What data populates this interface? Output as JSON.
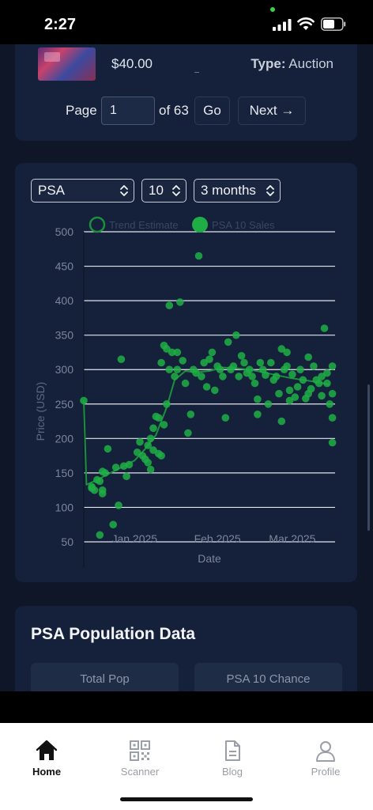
{
  "status": {
    "time": "2:27"
  },
  "listing": {
    "price": "$40.00",
    "type_label": "Type:",
    "type_value": "Auction"
  },
  "pager": {
    "page_label": "Page",
    "page_value": "1",
    "of_label": "of 63",
    "go_label": "Go",
    "next_label": "Next →"
  },
  "filters": {
    "grader": "PSA",
    "grade": "10",
    "range": "3 months"
  },
  "chart_data": {
    "type": "scatter",
    "xlabel": "Date",
    "ylabel": "Price (USD)",
    "ylim": [
      50,
      500
    ],
    "xlim": [
      "2024-12-13",
      "2025-03-17"
    ],
    "yticks": [
      50,
      100,
      150,
      200,
      250,
      300,
      350,
      400,
      450,
      500
    ],
    "xticks": [
      {
        "date": "2025-01-01",
        "label": "Jan 2025"
      },
      {
        "date": "2025-02-01",
        "label": "Feb 2025"
      },
      {
        "date": "2025-03-01",
        "label": "Mar 2025"
      }
    ],
    "grid": "horizontal",
    "legend_position": "top",
    "colors": {
      "sales": "#1fae45",
      "trend": "#1c8f3c",
      "grid": "#e3e6ec",
      "text": "#7b859a"
    },
    "series": [
      {
        "name": "Trend Estimate",
        "style": "line",
        "points": [
          [
            "2024-12-13",
            255
          ],
          [
            "2024-12-14",
            133
          ],
          [
            "2024-12-18",
            140
          ],
          [
            "2024-12-22",
            148
          ],
          [
            "2024-12-27",
            158
          ],
          [
            "2025-01-01",
            168
          ],
          [
            "2025-01-05",
            185
          ],
          [
            "2025-01-09",
            205
          ],
          [
            "2025-01-13",
            245
          ],
          [
            "2025-01-16",
            285
          ],
          [
            "2025-01-20",
            298
          ],
          [
            "2025-01-24",
            296
          ],
          [
            "2025-01-29",
            298
          ],
          [
            "2025-02-03",
            303
          ],
          [
            "2025-02-08",
            302
          ],
          [
            "2025-02-13",
            300
          ],
          [
            "2025-02-18",
            296
          ],
          [
            "2025-02-23",
            292
          ],
          [
            "2025-02-28",
            288
          ],
          [
            "2025-03-05",
            285
          ],
          [
            "2025-03-10",
            282
          ],
          [
            "2025-03-15",
            278
          ]
        ]
      },
      {
        "name": "PSA 10 Sales",
        "style": "scatter",
        "points": [
          [
            "2024-12-13",
            255
          ],
          [
            "2024-12-16",
            128
          ],
          [
            "2024-12-16",
            130
          ],
          [
            "2024-12-17",
            125
          ],
          [
            "2024-12-18",
            140
          ],
          [
            "2024-12-19",
            138
          ],
          [
            "2024-12-20",
            152
          ],
          [
            "2024-12-20",
            125
          ],
          [
            "2024-12-20",
            120
          ],
          [
            "2024-12-21",
            150
          ],
          [
            "2024-12-22",
            185
          ],
          [
            "2024-12-19",
            60
          ],
          [
            "2024-12-24",
            75
          ],
          [
            "2024-12-26",
            103
          ],
          [
            "2024-12-25",
            158
          ],
          [
            "2024-12-27",
            315
          ],
          [
            "2024-12-28",
            160
          ],
          [
            "2024-12-29",
            145
          ],
          [
            "2024-12-30",
            162
          ],
          [
            "2025-01-02",
            180
          ],
          [
            "2025-01-03",
            195
          ],
          [
            "2025-01-04",
            175
          ],
          [
            "2025-01-05",
            170
          ],
          [
            "2025-01-06",
            165
          ],
          [
            "2025-01-06",
            190
          ],
          [
            "2025-01-07",
            155
          ],
          [
            "2025-01-07",
            200
          ],
          [
            "2025-01-08",
            215
          ],
          [
            "2025-01-08",
            183
          ],
          [
            "2025-01-09",
            232
          ],
          [
            "2025-01-10",
            178
          ],
          [
            "2025-01-10",
            230
          ],
          [
            "2025-01-11",
            175
          ],
          [
            "2025-01-11",
            310
          ],
          [
            "2025-01-12",
            220
          ],
          [
            "2025-01-12",
            335
          ],
          [
            "2025-01-13",
            250
          ],
          [
            "2025-01-13",
            330
          ],
          [
            "2025-01-14",
            393
          ],
          [
            "2025-01-14",
            300
          ],
          [
            "2025-01-15",
            325
          ],
          [
            "2025-01-16",
            290
          ],
          [
            "2025-01-17",
            300
          ],
          [
            "2025-01-17",
            325
          ],
          [
            "2025-01-18",
            398
          ],
          [
            "2025-01-19",
            313
          ],
          [
            "2025-01-20",
            280
          ],
          [
            "2025-01-21",
            208
          ],
          [
            "2025-01-22",
            235
          ],
          [
            "2025-01-23",
            300
          ],
          [
            "2025-01-24",
            295
          ],
          [
            "2025-01-25",
            465
          ],
          [
            "2025-01-26",
            290
          ],
          [
            "2025-01-27",
            310
          ],
          [
            "2025-01-28",
            275
          ],
          [
            "2025-01-29",
            315
          ],
          [
            "2025-01-30",
            325
          ],
          [
            "2025-01-31",
            270
          ],
          [
            "2025-02-01",
            305
          ],
          [
            "2025-02-02",
            300
          ],
          [
            "2025-02-03",
            290
          ],
          [
            "2025-02-04",
            230
          ],
          [
            "2025-02-05",
            340
          ],
          [
            "2025-02-06",
            300
          ],
          [
            "2025-02-07",
            305
          ],
          [
            "2025-02-08",
            350
          ],
          [
            "2025-02-09",
            290
          ],
          [
            "2025-02-10",
            320
          ],
          [
            "2025-02-11",
            310
          ],
          [
            "2025-02-12",
            295
          ],
          [
            "2025-02-13",
            300
          ],
          [
            "2025-02-14",
            290
          ],
          [
            "2025-02-15",
            280
          ],
          [
            "2025-02-16",
            257
          ],
          [
            "2025-02-16",
            235
          ],
          [
            "2025-02-17",
            310
          ],
          [
            "2025-02-18",
            300
          ],
          [
            "2025-02-19",
            292
          ],
          [
            "2025-02-20",
            250
          ],
          [
            "2025-02-21",
            310
          ],
          [
            "2025-02-22",
            285
          ],
          [
            "2025-02-23",
            290
          ],
          [
            "2025-02-24",
            265
          ],
          [
            "2025-02-25",
            225
          ],
          [
            "2025-02-25",
            330
          ],
          [
            "2025-02-26",
            300
          ],
          [
            "2025-02-27",
            305
          ],
          [
            "2025-02-27",
            325
          ],
          [
            "2025-02-28",
            255
          ],
          [
            "2025-02-28",
            270
          ],
          [
            "2025-03-01",
            293
          ],
          [
            "2025-03-02",
            260
          ],
          [
            "2025-03-03",
            275
          ],
          [
            "2025-03-04",
            300
          ],
          [
            "2025-03-05",
            285
          ],
          [
            "2025-03-06",
            258
          ],
          [
            "2025-03-07",
            318
          ],
          [
            "2025-03-07",
            265
          ],
          [
            "2025-03-08",
            272
          ],
          [
            "2025-03-09",
            305
          ],
          [
            "2025-03-10",
            285
          ],
          [
            "2025-03-11",
            280
          ],
          [
            "2025-03-12",
            290
          ],
          [
            "2025-03-12",
            262
          ],
          [
            "2025-03-13",
            360
          ],
          [
            "2025-03-14",
            295
          ],
          [
            "2025-03-14",
            280
          ],
          [
            "2025-03-15",
            250
          ],
          [
            "2025-03-16",
            305
          ],
          [
            "2025-03-16",
            265
          ],
          [
            "2025-03-16",
            230
          ],
          [
            "2025-03-16",
            194
          ]
        ]
      }
    ]
  },
  "population": {
    "title": "PSA Population Data",
    "total_pop_label": "Total Pop",
    "psa10_chance_label": "PSA 10 Chance"
  },
  "tabs": [
    {
      "label": "Home",
      "icon": "home-icon"
    },
    {
      "label": "Scanner",
      "icon": "qr-code-icon"
    },
    {
      "label": "Blog",
      "icon": "document-icon"
    },
    {
      "label": "Profile",
      "icon": "user-icon"
    }
  ]
}
